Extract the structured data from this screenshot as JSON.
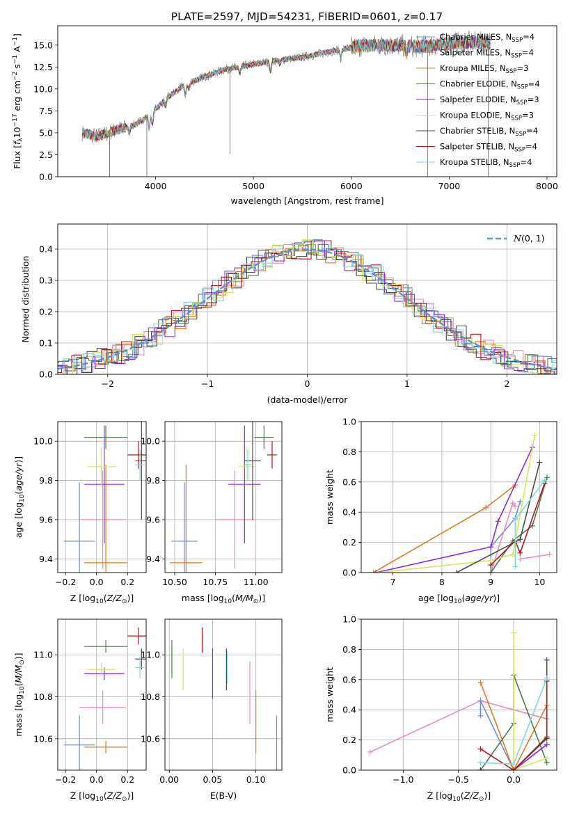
{
  "figure": {
    "title": "PLATE=2597, MJD=54231, FIBERID=0601, z=0.17"
  },
  "colors": {
    "chabrier_miles": "#6a8fd8",
    "salpeter_miles": "#e88bc4",
    "kroupa_miles": "#e07a20",
    "chabrier_elodie": "#4d7a4d",
    "salpeter_elodie": "#8a2be2",
    "kroupa_elodie": "#d4e857",
    "chabrier_stelib": "#4a4a4a",
    "salpeter_stelib": "#b01818",
    "kroupa_stelib": "#7ed8dc",
    "data": "#808080",
    "normal_curve": "#5b8fd6",
    "grid": "#b0b0b0"
  },
  "chart_data": [
    {
      "id": "spectrum",
      "type": "line",
      "xlabel": "wavelength [Angstrom, rest frame]",
      "ylabel": "Flux [f_λ10^-17 erg cm^-2 s^-1 A^-1]",
      "xlim": [
        3000,
        8100
      ],
      "ylim": [
        0,
        17.2
      ],
      "xticks": [
        4000,
        5000,
        6000,
        7000,
        8000
      ],
      "yticks": [
        0.0,
        2.5,
        5.0,
        7.5,
        10.0,
        12.5,
        15.0
      ],
      "xtick_labels": [
        "4000",
        "5000",
        "6000",
        "7000",
        "8000"
      ],
      "ytick_labels": [
        "0.0",
        "2.5",
        "5.0",
        "7.5",
        "10.0",
        "12.5",
        "15.0"
      ],
      "grid": false,
      "legend": "top-right",
      "legend_entries": [
        {
          "key": "chabrier_miles",
          "label": "Chabrier MILES, N",
          "sub": "SSP",
          "tail": "=4"
        },
        {
          "key": "salpeter_miles",
          "label": "Salpeter MILES, N",
          "sub": "SSP",
          "tail": "=4"
        },
        {
          "key": "kroupa_miles",
          "label": "Kroupa MILES, N",
          "sub": "SSP",
          "tail": "=3"
        },
        {
          "key": "chabrier_elodie",
          "label": "Chabrier ELODIE, N",
          "sub": "SSP",
          "tail": "=4"
        },
        {
          "key": "salpeter_elodie",
          "label": "Salpeter ELODIE, N",
          "sub": "SSP",
          "tail": "=3"
        },
        {
          "key": "kroupa_elodie",
          "label": "Kroupa ELODIE, N",
          "sub": "SSP",
          "tail": "=3"
        },
        {
          "key": "chabrier_stelib",
          "label": "Chabrier STELIB, N",
          "sub": "SSP",
          "tail": "=4"
        },
        {
          "key": "salpeter_stelib",
          "label": "Salpeter STELIB, N",
          "sub": "SSP",
          "tail": "=4"
        },
        {
          "key": "kroupa_stelib",
          "label": "Kroupa STELIB, N",
          "sub": "SSP",
          "tail": "=4"
        }
      ],
      "continuum": {
        "x": [
          3250,
          3400,
          3600,
          3800,
          3950,
          4100,
          4300,
          4500,
          4700,
          4900,
          5200,
          5500,
          5800,
          6100,
          6400,
          6700,
          7000,
          7200,
          7400
        ],
        "y": [
          5.0,
          4.6,
          5.3,
          6.0,
          7.2,
          8.8,
          10.5,
          11.4,
          12.2,
          12.6,
          13.2,
          13.6,
          14.3,
          14.9,
          15.0,
          14.8,
          15.2,
          15.3,
          15.3
        ]
      },
      "spikes": [
        {
          "x": 3530,
          "ymin": 0,
          "series": "data"
        },
        {
          "x": 3910,
          "ymin": 0,
          "series": "data"
        },
        {
          "x": 4760,
          "ymin": 2.6,
          "series": "data"
        },
        {
          "x": 6780,
          "ymin": 0,
          "series": "data"
        },
        {
          "x": 7400,
          "ymin": 0,
          "series": "data"
        }
      ]
    },
    {
      "id": "residuals",
      "type": "histogram",
      "xlabel": "(data-model)/error",
      "ylabel": "Normed distribution",
      "xlim": [
        -2.5,
        2.5
      ],
      "ylim": [
        0,
        0.48
      ],
      "xticks": [
        -2,
        -1,
        0,
        1,
        2
      ],
      "yticks": [
        0.0,
        0.1,
        0.2,
        0.3,
        0.4
      ],
      "xtick_labels": [
        "−2",
        "−1",
        "0",
        "1",
        "2"
      ],
      "ytick_labels": [
        "0.0",
        "0.1",
        "0.2",
        "0.3",
        "0.4"
      ],
      "grid": true,
      "legend": "top-right",
      "legend_label": "N(0, 1)",
      "bin_width": 0.1
    },
    {
      "id": "age_vs_Z",
      "type": "scatter",
      "xlabel": "Z [log10(Z/Z⊙)]",
      "ylabel": "age  [log10(age/yr)]",
      "xlim": [
        -0.25,
        0.32
      ],
      "ylim": [
        9.33,
        10.1
      ],
      "xticks": [
        -0.2,
        0.0,
        0.2
      ],
      "yticks": [
        9.4,
        9.6,
        9.8,
        10.0
      ],
      "xtick_labels": [
        "−0.2",
        "0.0",
        "0.2"
      ],
      "ytick_labels": [
        "9.4",
        "9.6",
        "9.8",
        "10.0"
      ],
      "grid": true,
      "points": [
        {
          "series": "chabrier_miles",
          "x": -0.11,
          "xerr": 0.1,
          "y": 9.49,
          "yerr": 0.3
        },
        {
          "series": "salpeter_miles",
          "x": 0.04,
          "xerr": 0.15,
          "y": 9.6,
          "yerr": 0.25
        },
        {
          "series": "kroupa_miles",
          "x": 0.06,
          "xerr": 0.14,
          "y": 9.38,
          "yerr": 0.5
        },
        {
          "series": "chabrier_elodie",
          "x": 0.06,
          "xerr": 0.14,
          "y": 10.02,
          "yerr": 0.06
        },
        {
          "series": "salpeter_elodie",
          "x": 0.05,
          "xerr": 0.13,
          "y": 9.78,
          "yerr": 0.3
        },
        {
          "series": "kroupa_elodie",
          "x": 0.03,
          "xerr": 0.09,
          "y": 9.87,
          "yerr": 0.1
        },
        {
          "series": "chabrier_stelib",
          "x": 0.29,
          "xerr": 0.04,
          "y": 9.9,
          "yerr": 0.3
        },
        {
          "series": "salpeter_stelib",
          "x": 0.27,
          "xerr": 0.07,
          "y": 9.93,
          "yerr": 0.07
        },
        {
          "series": "kroupa_stelib",
          "x": 0.28,
          "xerr": 0.03,
          "y": 9.88,
          "yerr": 0.08
        }
      ]
    },
    {
      "id": "age_vs_mass",
      "type": "scatter",
      "xlabel": "mass [log10(M/M⊙)]",
      "ylabel": "",
      "xlim": [
        10.44,
        11.16
      ],
      "ylim": [
        9.33,
        10.1
      ],
      "xticks": [
        10.5,
        10.75,
        11.0
      ],
      "yticks": [
        9.4,
        9.6,
        9.8,
        10.0
      ],
      "xtick_labels": [
        "10.50",
        "10.75",
        "11.00"
      ],
      "ytick_labels": [
        "9.4",
        "9.6",
        "9.8",
        "10.0"
      ],
      "grid": true,
      "points": [
        {
          "series": "chabrier_miles",
          "x": 10.56,
          "xerr": 0.08,
          "y": 9.49,
          "yerr": 0.3
        },
        {
          "series": "salpeter_miles",
          "x": 10.87,
          "xerr": 0.12,
          "y": 9.6,
          "yerr": 0.25
        },
        {
          "series": "kroupa_miles",
          "x": 10.57,
          "xerr": 0.1,
          "y": 9.38,
          "yerr": 0.5
        },
        {
          "series": "chabrier_elodie",
          "x": 11.05,
          "xerr": 0.06,
          "y": 10.02,
          "yerr": 0.06
        },
        {
          "series": "salpeter_elodie",
          "x": 10.93,
          "xerr": 0.1,
          "y": 9.78,
          "yerr": 0.3
        },
        {
          "series": "kroupa_elodie",
          "x": 10.94,
          "xerr": 0.05,
          "y": 9.87,
          "yerr": 0.1
        },
        {
          "series": "chabrier_stelib",
          "x": 10.98,
          "xerr": 0.05,
          "y": 9.9,
          "yerr": 0.3
        },
        {
          "series": "salpeter_stelib",
          "x": 11.1,
          "xerr": 0.03,
          "y": 9.93,
          "yerr": 0.07
        },
        {
          "series": "kroupa_stelib",
          "x": 10.95,
          "xerr": 0.03,
          "y": 9.88,
          "yerr": 0.08
        }
      ]
    },
    {
      "id": "mass_weight_vs_age",
      "type": "line",
      "xlabel": "age  [log10(age/yr)]",
      "ylabel": "mass weight",
      "xlim": [
        6.35,
        10.35
      ],
      "ylim": [
        0,
        1.0
      ],
      "xticks": [
        7,
        8,
        9,
        10
      ],
      "yticks": [
        0.0,
        0.2,
        0.4,
        0.6,
        0.8,
        1.0
      ],
      "xtick_labels": [
        "7",
        "8",
        "9",
        "10"
      ],
      "ytick_labels": [
        "0.0",
        "0.2",
        "0.4",
        "0.6",
        "0.8",
        "1.0"
      ],
      "grid": true,
      "series": [
        {
          "key": "chabrier_miles",
          "x": [
            9.0,
            9.0,
            9.5,
            9.6
          ],
          "y": [
            0.0,
            0.17,
            0.36,
            0.47
          ]
        },
        {
          "key": "salpeter_miles",
          "x": [
            9.0,
            9.45,
            9.5
          ],
          "y": [
            0.0,
            0.46,
            0.44
          ]
        },
        {
          "key": "kroupa_miles",
          "x": [
            6.6,
            8.9,
            9.5
          ],
          "y": [
            0.0,
            0.43,
            0.58
          ]
        },
        {
          "key": "chabrier_elodie",
          "x": [
            9.0,
            9.45,
            9.85,
            10.15
          ],
          "y": [
            0.0,
            0.21,
            0.31,
            0.63
          ]
        },
        {
          "key": "salpeter_elodie",
          "x": [
            6.65,
            9.0,
            9.15,
            9.85
          ],
          "y": [
            0.0,
            0.17,
            0.34,
            0.83
          ]
        },
        {
          "key": "kroupa_elodie",
          "x": [
            6.7,
            9.0,
            9.45,
            9.9
          ],
          "y": [
            0.0,
            0.08,
            0.12,
            0.91
          ]
        },
        {
          "key": "chabrier_stelib",
          "x": [
            8.3,
            9.6,
            10.0
          ],
          "y": [
            0.0,
            0.22,
            0.73
          ]
        },
        {
          "key": "salpeter_stelib",
          "x": [
            9.0,
            9.5,
            9.6,
            10.1
          ],
          "y": [
            0.05,
            0.21,
            0.13,
            0.59
          ]
        },
        {
          "key": "kroupa_stelib",
          "x": [
            9.5,
            9.5,
            10.1
          ],
          "y": [
            0.04,
            0.35,
            0.61
          ]
        },
        {
          "key": "salpeter_miles",
          "x": [
            9.6,
            10.2
          ],
          "y": [
            0.09,
            0.12
          ]
        }
      ]
    },
    {
      "id": "mass_vs_Z",
      "type": "scatter",
      "xlabel": "Z [log10(Z/Z⊙)]",
      "ylabel": "mass [log10(M/M⊙)]",
      "xlim": [
        -0.25,
        0.32
      ],
      "ylim": [
        10.45,
        11.17
      ],
      "xticks": [
        -0.2,
        0.0,
        0.2
      ],
      "yticks": [
        10.6,
        10.8,
        11.0
      ],
      "xtick_labels": [
        "−0.2",
        "0.0",
        "0.2"
      ],
      "ytick_labels": [
        "10.6",
        "10.8",
        "11.0"
      ],
      "grid": true,
      "points": [
        {
          "series": "chabrier_miles",
          "x": -0.11,
          "xerr": 0.1,
          "y": 10.57,
          "yerr": 0.14
        },
        {
          "series": "salpeter_miles",
          "x": 0.04,
          "xerr": 0.15,
          "y": 10.75,
          "yerr": 0.08
        },
        {
          "series": "kroupa_miles",
          "x": 0.06,
          "xerr": 0.14,
          "y": 10.56,
          "yerr": 0.03
        },
        {
          "series": "chabrier_elodie",
          "x": 0.06,
          "xerr": 0.14,
          "y": 11.04,
          "yerr": 0.03
        },
        {
          "series": "salpeter_elodie",
          "x": 0.05,
          "xerr": 0.13,
          "y": 10.91,
          "yerr": 0.03
        },
        {
          "series": "kroupa_elodie",
          "x": 0.03,
          "xerr": 0.09,
          "y": 10.93,
          "yerr": 0.03
        },
        {
          "series": "chabrier_stelib",
          "x": 0.29,
          "xerr": 0.04,
          "y": 10.98,
          "yerr": 0.05
        },
        {
          "series": "salpeter_stelib",
          "x": 0.27,
          "xerr": 0.07,
          "y": 11.09,
          "yerr": 0.04
        },
        {
          "series": "kroupa_stelib",
          "x": 0.28,
          "xerr": 0.03,
          "y": 10.94,
          "yerr": 0.05
        }
      ]
    },
    {
      "id": "mass_vs_ebv",
      "type": "scatter",
      "xlabel": "E(B-V)",
      "ylabel": "",
      "xlim": [
        -0.005,
        0.13
      ],
      "ylim": [
        10.45,
        11.17
      ],
      "xticks": [
        0.0,
        0.05,
        0.1
      ],
      "yticks": [
        10.6,
        10.8,
        11.0
      ],
      "xtick_labels": [
        "0.00",
        "0.05",
        "0.10"
      ],
      "ytick_labels": [
        "10.6",
        "10.8",
        "11.0"
      ],
      "grid": true,
      "points": [
        {
          "series": "chabrier_elodie",
          "x": 0.003,
          "y": 10.98,
          "yerr": 0.09
        },
        {
          "series": "kroupa_elodie",
          "x": 0.016,
          "y": 10.93,
          "yerr": 0.1
        },
        {
          "series": "salpeter_stelib",
          "x": 0.038,
          "y": 11.07,
          "yerr": 0.06
        },
        {
          "series": "salpeter_elodie",
          "x": 0.05,
          "y": 10.91,
          "yerr": 0.12
        },
        {
          "series": "chabrier_stelib",
          "x": 0.066,
          "y": 10.93,
          "yerr": 0.1
        },
        {
          "series": "kroupa_stelib",
          "x": 0.067,
          "y": 10.94,
          "yerr": 0.08
        },
        {
          "series": "salpeter_miles",
          "x": 0.093,
          "y": 10.82,
          "yerr": 0.15
        },
        {
          "series": "kroupa_miles",
          "x": 0.1,
          "y": 10.68,
          "yerr": 0.15
        },
        {
          "series": "chabrier_miles",
          "x": 0.124,
          "y": 10.57,
          "yerr": 0.14
        }
      ]
    },
    {
      "id": "mass_weight_vs_Z",
      "type": "line",
      "xlabel": "Z [log10(Z/Z⊙)]",
      "ylabel": "mass weight",
      "xlim": [
        -1.38,
        0.39
      ],
      "ylim": [
        0,
        1.0
      ],
      "xticks": [
        -1.0,
        -0.5,
        0.0
      ],
      "yticks": [
        0.0,
        0.2,
        0.4,
        0.6,
        0.8,
        1.0
      ],
      "xtick_labels": [
        "−1.0",
        "−0.5",
        "0.0"
      ],
      "ytick_labels": [
        "0.0",
        "0.2",
        "0.4",
        "0.6",
        "0.8",
        "1.0"
      ],
      "grid": true,
      "series": [
        {
          "key": "salpeter_miles",
          "x": [
            -1.3,
            -0.3,
            0.3
          ],
          "y": [
            0.12,
            0.46,
            0.34
          ]
        },
        {
          "key": "chabrier_miles",
          "x": [
            -0.3,
            -0.3,
            0.0,
            0.3
          ],
          "y": [
            0.36,
            0.46,
            0.0,
            0.17
          ]
        },
        {
          "key": "kroupa_miles",
          "x": [
            -0.3,
            0.0,
            0.3
          ],
          "y": [
            0.58,
            0.0,
            0.43
          ]
        },
        {
          "key": "chabrier_elodie",
          "x": [
            -0.3,
            0.0,
            0.0,
            0.3
          ],
          "y": [
            0.0,
            0.31,
            0.63,
            0.05
          ]
        },
        {
          "key": "salpeter_elodie",
          "x": [
            0.0,
            0.3
          ],
          "y": [
            0.0,
            0.17
          ]
        },
        {
          "key": "kroupa_elodie",
          "x": [
            0.0,
            0.0,
            0.3
          ],
          "y": [
            0.91,
            0.0,
            0.08
          ]
        },
        {
          "key": "chabrier_stelib",
          "x": [
            -0.3,
            0.0,
            0.3,
            0.3
          ],
          "y": [
            0.0,
            0.0,
            0.22,
            0.73
          ]
        },
        {
          "key": "salpeter_stelib",
          "x": [
            -0.3,
            0.0,
            0.3,
            0.3
          ],
          "y": [
            0.14,
            0.0,
            0.21,
            0.59
          ]
        },
        {
          "key": "kroupa_stelib",
          "x": [
            -0.3,
            0.0,
            0.3
          ],
          "y": [
            0.05,
            0.04,
            0.61
          ]
        }
      ]
    }
  ]
}
